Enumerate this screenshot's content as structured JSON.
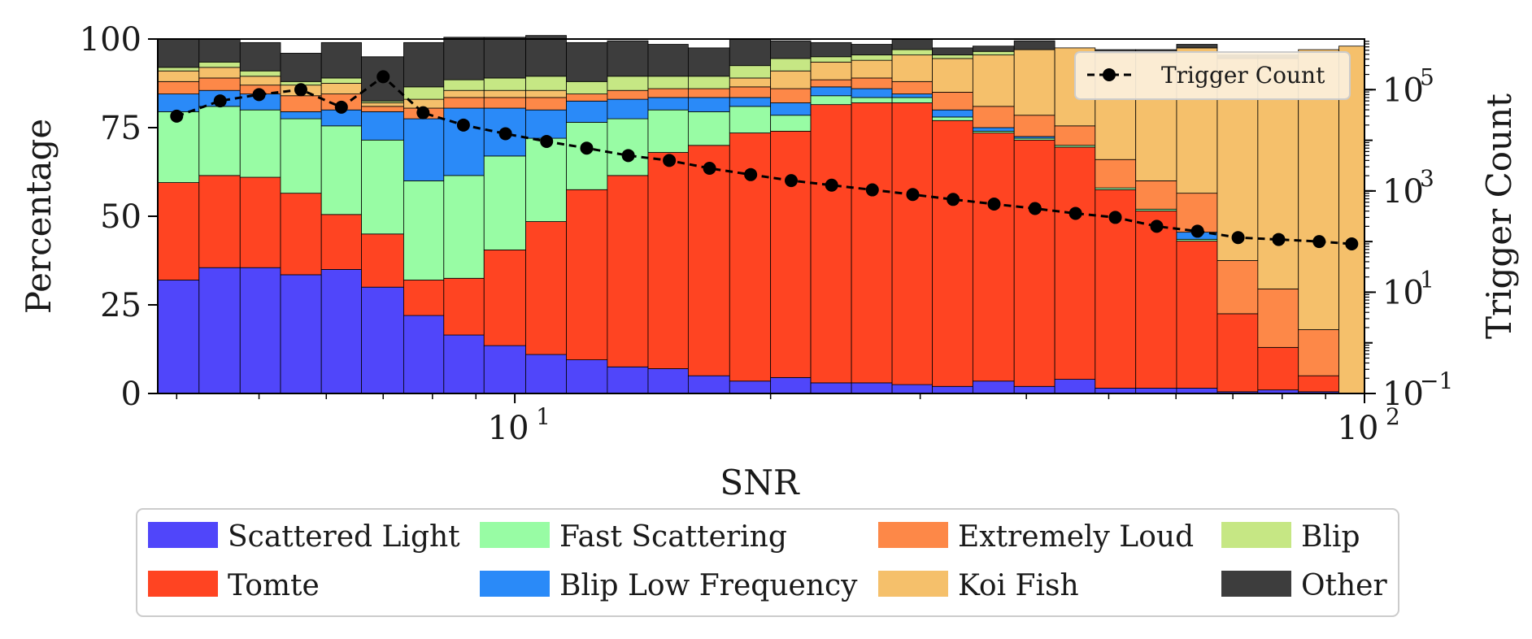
{
  "chart_data": {
    "type": "bar",
    "stacked": true,
    "x_scale": "log",
    "xlim": [
      3.8,
      100
    ],
    "ylim": [
      0,
      100
    ],
    "xlabel": "SNR",
    "ylabel": "Percentage",
    "y2label": "Trigger Count",
    "y2_scale": "log",
    "y2lim": [
      0.1,
      1000000
    ],
    "x_ticks": [
      {
        "value": 10,
        "base": "10",
        "exp": "1"
      },
      {
        "value": 100,
        "base": "10",
        "exp": "2"
      }
    ],
    "y_ticks": [
      "0",
      "25",
      "50",
      "75",
      "100"
    ],
    "y2_ticks": [
      {
        "value": 0.1,
        "base": "10",
        "exp": "−1"
      },
      {
        "value": 10,
        "base": "10",
        "exp": "1"
      },
      {
        "value": 1000,
        "base": "10",
        "exp": "3"
      },
      {
        "value": 100000,
        "base": "10",
        "exp": "5"
      }
    ],
    "bin_edges": [
      3.8,
      4.25,
      4.75,
      5.3,
      5.92,
      6.6,
      7.4,
      8.25,
      9.2,
      10.3,
      11.5,
      12.85,
      14.35,
      16.0,
      17.9,
      20.0,
      22.3,
      24.9,
      27.8,
      31.0,
      34.6,
      38.7,
      43.2,
      48.2,
      53.8,
      60.1,
      67.1,
      74.9,
      83.6,
      93.3,
      100.0
    ],
    "series": [
      {
        "name": "Scattered Light",
        "color": "#5046fa",
        "values": [
          32,
          35.5,
          35.5,
          33.5,
          35,
          30,
          22,
          16.5,
          13.5,
          11,
          9.5,
          7.5,
          7,
          5,
          3.5,
          4.5,
          3,
          3,
          2.5,
          2,
          3.5,
          2,
          4,
          1.5,
          1.5,
          1.5,
          0.5,
          1,
          0.5,
          0
        ]
      },
      {
        "name": "Tomte",
        "color": "#ff4422",
        "values": [
          27.5,
          26,
          25.5,
          23,
          15.5,
          15,
          10,
          16,
          27,
          37.5,
          48,
          54,
          61,
          65,
          70,
          69.5,
          78.5,
          79,
          79.5,
          75,
          70,
          69.5,
          65.5,
          56,
          50,
          41.5,
          22,
          12,
          4.5,
          0
        ]
      },
      {
        "name": "Fast Scattering",
        "color": "#98fca4",
        "values": [
          20,
          19.5,
          19,
          21,
          25,
          26.5,
          28,
          29,
          26.5,
          23.5,
          19,
          16,
          12,
          9.5,
          7.5,
          4.5,
          2.5,
          1.5,
          1.5,
          1,
          0.5,
          0.5,
          0.5,
          0.5,
          0.5,
          0.5,
          0,
          0,
          0,
          0
        ]
      },
      {
        "name": "Blip Low Frequency",
        "color": "#2a8af8",
        "values": [
          5,
          4.5,
          4.5,
          2,
          4.5,
          8,
          17.5,
          19,
          13.5,
          8,
          6,
          5.5,
          3.5,
          4,
          2.5,
          3.5,
          2.5,
          2.5,
          1,
          2,
          1,
          0.5,
          0,
          0,
          0,
          2,
          0,
          0,
          0,
          0
        ]
      },
      {
        "name": "Extremely Loud",
        "color": "#fd8848",
        "values": [
          3.5,
          3.5,
          2.5,
          4.5,
          4.5,
          1.5,
          3,
          3,
          3,
          3.5,
          2,
          2.5,
          2.5,
          2.5,
          3,
          4,
          2,
          3,
          3.5,
          5,
          6,
          6,
          5.5,
          8,
          8,
          11,
          15,
          16.5,
          13,
          0
        ]
      },
      {
        "name": "Koi Fish",
        "color": "#f5c06b",
        "values": [
          3,
          3,
          2.5,
          3,
          3,
          1,
          2.5,
          2,
          2,
          2,
          0,
          0,
          0,
          0,
          2.5,
          5,
          5,
          5,
          7.5,
          9.5,
          14.5,
          18.5,
          22,
          30,
          36,
          41,
          57,
          65,
          79,
          98
        ]
      },
      {
        "name": "Blip",
        "color": "#c6e784",
        "values": [
          1,
          1.5,
          1.5,
          1,
          1.5,
          0.5,
          3.5,
          3,
          3.5,
          4,
          3.5,
          4,
          3.5,
          3.5,
          3.5,
          3.5,
          1.5,
          1.5,
          1.5,
          1,
          1,
          0,
          0,
          0,
          0,
          0,
          0,
          0,
          0,
          0
        ]
      },
      {
        "name": "Other",
        "color": "#3d3d3d",
        "values": [
          8,
          6.5,
          8,
          8,
          10,
          12.5,
          12.5,
          12,
          11.5,
          11.5,
          11,
          10,
          9,
          8,
          7.5,
          5,
          4,
          3,
          3,
          2,
          1.5,
          2.5,
          0,
          1,
          1,
          1,
          1,
          1,
          0,
          0
        ]
      }
    ],
    "trigger_count": {
      "name": "Trigger Count",
      "color": "#000000",
      "x": [
        4.0,
        4.5,
        5.0,
        5.6,
        6.25,
        7.0,
        7.8,
        8.7,
        9.75,
        10.9,
        12.15,
        13.6,
        15.2,
        16.95,
        18.95,
        21.15,
        23.6,
        26.35,
        29.4,
        32.8,
        36.65,
        40.95,
        45.7,
        50.9,
        56.95,
        63.6,
        71.0,
        79.25,
        88.45,
        96.6
      ],
      "y": [
        30000,
        60000,
        80000,
        100000,
        45000,
        180000,
        35000,
        20000,
        13500,
        9500,
        7000,
        5000,
        4000,
        2800,
        2100,
        1600,
        1300,
        1050,
        850,
        680,
        550,
        450,
        360,
        300,
        200,
        160,
        120,
        110,
        100,
        90
      ]
    },
    "legend": {
      "position": "bottom",
      "entries": [
        "Scattered Light",
        "Tomte",
        "Fast Scattering",
        "Blip Low Frequency",
        "Extremely Loud",
        "Koi Fish",
        "Blip",
        "Other"
      ],
      "colors": [
        "#5046fa",
        "#ff4422",
        "#98fca4",
        "#2a8af8",
        "#fd8848",
        "#f5c06b",
        "#c6e784",
        "#3d3d3d"
      ]
    },
    "inner_legend": {
      "position": "top-right",
      "label": "Trigger Count"
    }
  }
}
